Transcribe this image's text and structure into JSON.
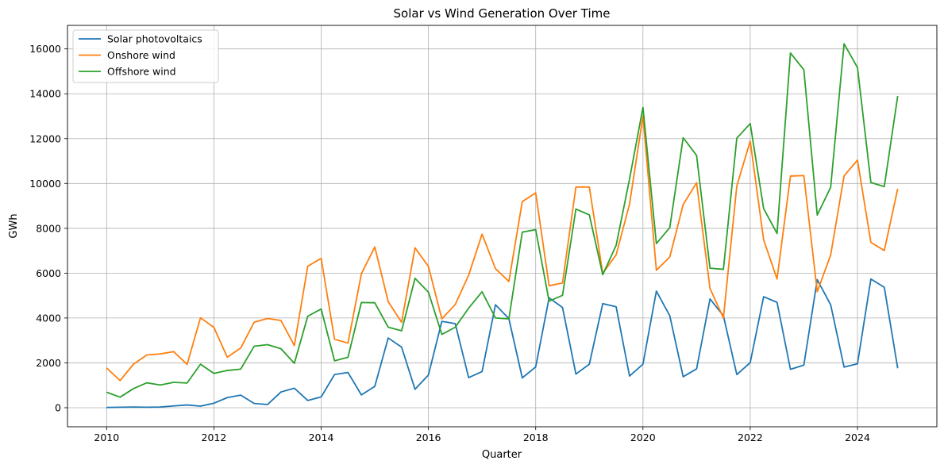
{
  "chart_data": {
    "type": "line",
    "title": "Solar vs Wind Generation Over Time",
    "xlabel": "Quarter",
    "ylabel": "GWh",
    "xlim": [
      2009.27,
      2025.48
    ],
    "ylim": [
      -850,
      17050
    ],
    "x_ticks": [
      2010,
      2012,
      2014,
      2016,
      2018,
      2020,
      2022,
      2024
    ],
    "x_tick_labels": [
      "2010",
      "2012",
      "2014",
      "2016",
      "2018",
      "2020",
      "2022",
      "2024"
    ],
    "y_ticks": [
      0,
      2000,
      4000,
      6000,
      8000,
      10000,
      12000,
      14000,
      16000
    ],
    "y_tick_labels": [
      "0",
      "2000",
      "4000",
      "6000",
      "8000",
      "10000",
      "12000",
      "14000",
      "16000"
    ],
    "grid": true,
    "legend_position": "top-left",
    "x": [
      2010.0,
      2010.25,
      2010.5,
      2010.75,
      2011.0,
      2011.25,
      2011.5,
      2011.75,
      2012.0,
      2012.25,
      2012.5,
      2012.75,
      2013.0,
      2013.25,
      2013.5,
      2013.75,
      2014.0,
      2014.25,
      2014.5,
      2014.75,
      2015.0,
      2015.25,
      2015.5,
      2015.75,
      2016.0,
      2016.25,
      2016.5,
      2016.75,
      2017.0,
      2017.25,
      2017.5,
      2017.75,
      2018.0,
      2018.25,
      2018.5,
      2018.75,
      2019.0,
      2019.25,
      2019.5,
      2019.75,
      2020.0,
      2020.25,
      2020.5,
      2020.75,
      2021.0,
      2021.25,
      2021.5,
      2021.75,
      2022.0,
      2022.25,
      2022.5,
      2022.75,
      2023.0,
      2023.25,
      2023.5,
      2023.75,
      2024.0,
      2024.25,
      2024.5,
      2024.75
    ],
    "series": [
      {
        "name": "Solar photovoltaics",
        "color": "#1f77b4",
        "values": [
          10,
          20,
          30,
          20,
          30,
          80,
          120,
          70,
          200,
          450,
          560,
          190,
          140,
          700,
          870,
          320,
          480,
          1480,
          1570,
          570,
          950,
          3110,
          2700,
          820,
          1460,
          3850,
          3750,
          1340,
          1610,
          4590,
          3970,
          1330,
          1820,
          4900,
          4470,
          1500,
          1940,
          4640,
          4500,
          1410,
          1940,
          5200,
          4100,
          1380,
          1730,
          4850,
          4100,
          1480,
          2010,
          4950,
          4700,
          1710,
          1900,
          5710,
          4590,
          1810,
          1960,
          5740,
          5370,
          1760
        ]
      },
      {
        "name": "Onshore wind",
        "color": "#ff7f0e",
        "values": [
          1770,
          1210,
          1940,
          2350,
          2400,
          2500,
          1930,
          4010,
          3580,
          2250,
          2660,
          3810,
          3980,
          3890,
          2770,
          6310,
          6660,
          3050,
          2880,
          5970,
          7170,
          4730,
          3810,
          7130,
          6300,
          3960,
          4600,
          5910,
          7740,
          6200,
          5630,
          9190,
          9580,
          5440,
          5560,
          9840,
          9840,
          5990,
          6820,
          9080,
          13010,
          6130,
          6720,
          9060,
          10030,
          5320,
          4000,
          9890,
          11890,
          7490,
          5740,
          10330,
          10350,
          5170,
          6810,
          10340,
          11040,
          7370,
          7010,
          9760
        ]
      },
      {
        "name": "Offshore wind",
        "color": "#2ca02c",
        "values": [
          690,
          470,
          850,
          1110,
          1010,
          1130,
          1100,
          1940,
          1530,
          1660,
          1720,
          2740,
          2810,
          2630,
          1980,
          4080,
          4400,
          2090,
          2250,
          4690,
          4680,
          3590,
          3430,
          5770,
          5150,
          3270,
          3590,
          4440,
          5170,
          4000,
          3960,
          7830,
          7940,
          4750,
          5010,
          8860,
          8600,
          5930,
          7240,
          10200,
          13390,
          7320,
          8030,
          12040,
          11250,
          6220,
          6170,
          12020,
          12670,
          8880,
          7770,
          15820,
          15070,
          8590,
          9830,
          16230,
          15170,
          10040,
          9860,
          13900
        ]
      }
    ]
  }
}
